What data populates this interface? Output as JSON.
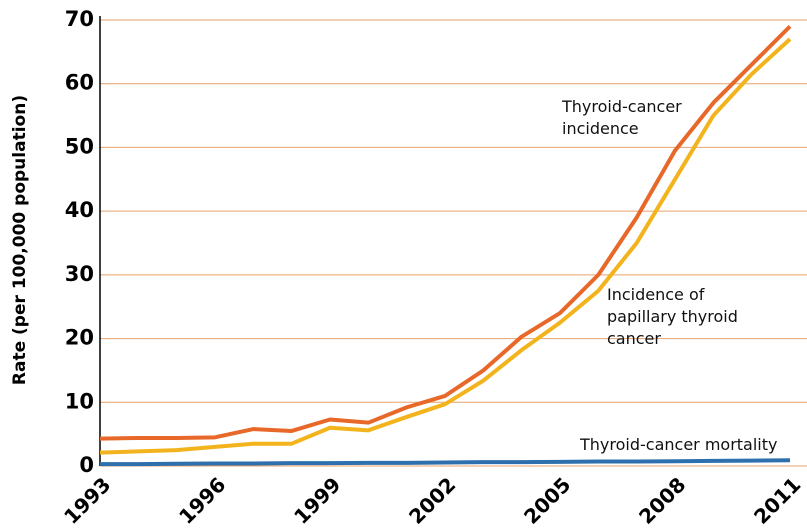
{
  "chart_data": {
    "type": "line",
    "ylabel": "Rate (per 100,000 population)",
    "x": [
      1993,
      1994,
      1995,
      1996,
      1997,
      1998,
      1999,
      2000,
      2001,
      2002,
      2003,
      2004,
      2005,
      2006,
      2007,
      2008,
      2009,
      2010,
      2011
    ],
    "series": [
      {
        "name": "Thyroid-cancer incidence",
        "color": "#e8682a",
        "values": [
          4.3,
          4.4,
          4.4,
          4.5,
          5.8,
          5.5,
          7.3,
          6.8,
          9.2,
          11,
          15,
          20.3,
          24,
          30,
          39,
          49.5,
          57,
          63,
          69
        ]
      },
      {
        "name": "Incidence of papillary thyroid cancer",
        "color": "#f2b31c",
        "values": [
          2.1,
          2.3,
          2.5,
          3.0,
          3.5,
          3.5,
          6.0,
          5.6,
          7.7,
          9.7,
          13.4,
          18.2,
          22.5,
          27.5,
          35,
          45,
          55,
          61.5,
          67
        ]
      },
      {
        "name": "Thyroid-cancer mortality",
        "color": "#2e6fae",
        "values": [
          0.3,
          0.3,
          0.35,
          0.4,
          0.4,
          0.45,
          0.45,
          0.5,
          0.5,
          0.55,
          0.6,
          0.6,
          0.65,
          0.7,
          0.7,
          0.75,
          0.8,
          0.85,
          0.9
        ]
      }
    ],
    "xlim": [
      1993,
      2011
    ],
    "xticks": [
      1993,
      1996,
      1999,
      2002,
      2005,
      2008,
      2011
    ],
    "ylim": [
      0,
      70
    ],
    "yticks": [
      0,
      10,
      20,
      30,
      40,
      50,
      60,
      70
    ],
    "grid": true
  }
}
